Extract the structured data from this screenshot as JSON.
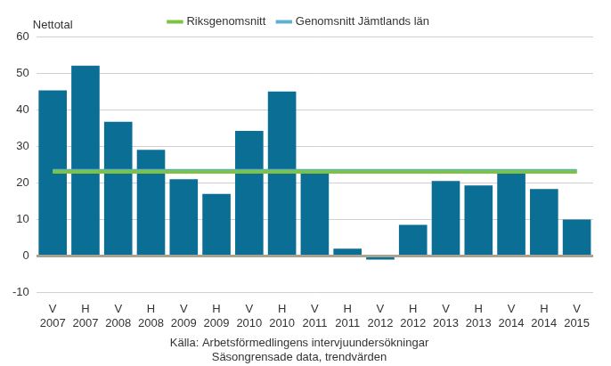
{
  "chart_data": {
    "type": "bar",
    "ylabel": "Nettotal",
    "source": [
      "Källa: Arbetsförmedlingens intervjuundersökningar",
      "Säsongrensade data, trendvärden"
    ],
    "categories": [
      [
        "V",
        "2007"
      ],
      [
        "H",
        "2007"
      ],
      [
        "V",
        "2008"
      ],
      [
        "H",
        "2008"
      ],
      [
        "V",
        "2009"
      ],
      [
        "H",
        "2009"
      ],
      [
        "V",
        "2010"
      ],
      [
        "H",
        "2010"
      ],
      [
        "V",
        "2011"
      ],
      [
        "H",
        "2011"
      ],
      [
        "V",
        "2012"
      ],
      [
        "H",
        "2012"
      ],
      [
        "V",
        "2013"
      ],
      [
        "H",
        "2013"
      ],
      [
        "V",
        "2014"
      ],
      [
        "H",
        "2014"
      ],
      [
        "V",
        "2015"
      ]
    ],
    "series": [
      {
        "type": "bar",
        "color": "#0b6e94",
        "values": [
          45.3,
          52,
          36.7,
          29,
          21,
          17,
          34.2,
          45,
          22.5,
          2,
          -1,
          8.5,
          20.5,
          19.3,
          22.5,
          18.3,
          10
        ]
      },
      {
        "name": "Genomsnitt Jämtlands län",
        "type": "line",
        "color": "#5fb0d0",
        "line_style": "solid",
        "values": [
          23.3,
          23.3,
          23.3,
          23.3,
          23.3,
          23.3,
          23.3,
          23.3,
          23.3,
          23.3,
          23.3,
          23.3,
          23.3,
          23.3,
          23.3,
          23.3,
          23.3
        ]
      },
      {
        "name": "Riksgenomsnitt",
        "type": "line",
        "color": "#7dc242",
        "line_style": "solid",
        "values": [
          23,
          23,
          23,
          23,
          23,
          23,
          23,
          23,
          23,
          23,
          23,
          23,
          23,
          23,
          23,
          23,
          23
        ]
      }
    ],
    "ylim": [
      -10,
      60
    ],
    "yticks": [
      -10,
      0,
      10,
      20,
      30,
      40,
      50,
      60
    ],
    "grid": true,
    "legend": "top"
  }
}
